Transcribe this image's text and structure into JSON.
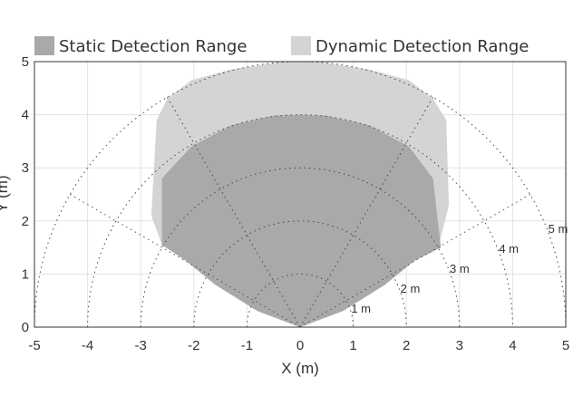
{
  "chart_data": {
    "type": "area",
    "title": "",
    "xlabel": "X (m)",
    "ylabel": "Y (m)",
    "xlim": [
      -5,
      5
    ],
    "ylim": [
      0,
      5
    ],
    "x_ticks": [
      -5,
      -4,
      -3,
      -2,
      -1,
      0,
      1,
      2,
      3,
      4,
      5
    ],
    "y_ticks": [
      0,
      1,
      2,
      3,
      4,
      5
    ],
    "grid": true,
    "legend_position": "top",
    "series": [
      {
        "name": "Static Detection Range",
        "color": "#a9a9a9",
        "x": [
          0,
          -0.8,
          -1.6,
          -2.15,
          -2.6,
          -2.6,
          -2.05,
          -1.3,
          -0.5,
          0,
          0.5,
          1.3,
          2.05,
          2.5,
          2.65,
          2.15,
          1.6,
          0.8,
          0
        ],
        "y": [
          0,
          0.3,
          0.8,
          1.25,
          1.55,
          2.8,
          3.4,
          3.8,
          3.98,
          4,
          3.98,
          3.8,
          3.4,
          2.8,
          1.5,
          1.25,
          0.8,
          0.3,
          0
        ]
      },
      {
        "name": "Dynamic Detection Range",
        "color": "#d4d4d4",
        "x": [
          0,
          -2.6,
          -2.8,
          -2.7,
          -2.5,
          -2.05,
          -1.3,
          -0.5,
          0,
          0.5,
          1.3,
          2.05,
          2.5,
          2.75,
          2.8,
          2.6,
          0
        ],
        "y": [
          0,
          1.55,
          2.1,
          3.9,
          4.3,
          4.65,
          4.85,
          4.97,
          5,
          4.97,
          4.85,
          4.65,
          4.3,
          3.9,
          2.3,
          1.5,
          0
        ]
      }
    ],
    "range_rings_m": [
      1,
      2,
      3,
      4,
      5
    ],
    "range_ring_labels": [
      "1 m",
      "2 m",
      "3 m",
      "4 m",
      "5 m"
    ],
    "angle_lines_deg": [
      -60,
      -30,
      30,
      60
    ]
  }
}
